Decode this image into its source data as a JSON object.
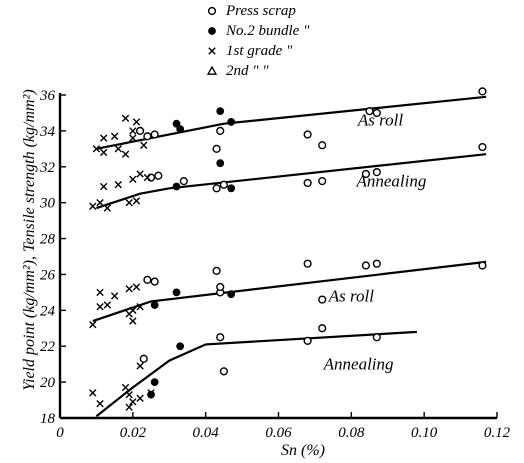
{
  "chart_data": {
    "type": "scatter",
    "title": "",
    "xlabel": "Sn (%)",
    "ylabel": "Yield point (kg/mm²), Tensile strength (kg/mm²)",
    "xlim": [
      0,
      0.12
    ],
    "ylim": [
      18,
      36
    ],
    "x_ticks": [
      0,
      0.02,
      0.04,
      0.06,
      0.08,
      0.1,
      0.12
    ],
    "x_tick_labels": [
      "0",
      "0.02",
      "0.04",
      "0.06",
      "0.08",
      "0.10",
      "0.12"
    ],
    "y_ticks": [
      18,
      20,
      22,
      24,
      26,
      28,
      30,
      32,
      34,
      36
    ],
    "y_tick_labels": [
      "18",
      "20",
      "22",
      "24",
      "26",
      "28",
      "30",
      "32",
      "34",
      "36"
    ],
    "grid": false,
    "legend": {
      "placement": "top-center",
      "entries": [
        {
          "marker": "circle-open",
          "label": "Press scrap"
        },
        {
          "marker": "circle-filled",
          "label": "No.2 bundle \""
        },
        {
          "marker": "cross",
          "label": "1st grade \""
        },
        {
          "marker": "triangle-open",
          "label": "2nd \" \""
        }
      ]
    },
    "annotations": [
      {
        "text": "As roll",
        "x": 0.088,
        "y": 34.3
      },
      {
        "text": "Annealing",
        "x": 0.091,
        "y": 30.9
      },
      {
        "text": "As roll",
        "x": 0.08,
        "y": 24.5
      },
      {
        "text": "Annealing",
        "x": 0.082,
        "y": 20.7
      }
    ],
    "trend_lines": [
      {
        "name": "tensile-as-roll",
        "points": [
          [
            0.01,
            33.0
          ],
          [
            0.025,
            33.6
          ],
          [
            0.045,
            34.4
          ],
          [
            0.117,
            35.9
          ]
        ]
      },
      {
        "name": "tensile-annealing",
        "points": [
          [
            0.01,
            29.7
          ],
          [
            0.022,
            30.5
          ],
          [
            0.03,
            30.8
          ],
          [
            0.117,
            32.7
          ]
        ]
      },
      {
        "name": "yield-as-roll",
        "points": [
          [
            0.009,
            23.4
          ],
          [
            0.025,
            24.5
          ],
          [
            0.117,
            26.7
          ]
        ]
      },
      {
        "name": "yield-annealing",
        "points": [
          [
            0.01,
            18.1
          ],
          [
            0.02,
            19.7
          ],
          [
            0.03,
            21.2
          ],
          [
            0.04,
            22.1
          ],
          [
            0.098,
            22.8
          ]
        ]
      }
    ],
    "series": [
      {
        "marker": "circle-open",
        "points": [
          [
            0.022,
            34.0
          ],
          [
            0.024,
            33.7
          ],
          [
            0.026,
            33.8
          ],
          [
            0.043,
            33.0
          ],
          [
            0.044,
            34.0
          ],
          [
            0.068,
            33.8
          ],
          [
            0.072,
            33.2
          ],
          [
            0.085,
            35.1
          ],
          [
            0.087,
            35.0
          ],
          [
            0.116,
            36.2
          ],
          [
            0.025,
            31.4
          ],
          [
            0.027,
            31.5
          ],
          [
            0.034,
            31.2
          ],
          [
            0.043,
            30.8
          ],
          [
            0.045,
            31.0
          ],
          [
            0.068,
            31.1
          ],
          [
            0.072,
            31.2
          ],
          [
            0.084,
            31.6
          ],
          [
            0.087,
            31.7
          ],
          [
            0.116,
            33.1
          ],
          [
            0.024,
            25.7
          ],
          [
            0.026,
            25.6
          ],
          [
            0.043,
            26.2
          ],
          [
            0.044,
            25.0
          ],
          [
            0.044,
            25.3
          ],
          [
            0.068,
            26.6
          ],
          [
            0.072,
            24.6
          ],
          [
            0.084,
            26.5
          ],
          [
            0.087,
            26.6
          ],
          [
            0.116,
            26.5
          ],
          [
            0.023,
            21.3
          ],
          [
            0.044,
            22.5
          ],
          [
            0.045,
            20.6
          ],
          [
            0.068,
            22.3
          ],
          [
            0.072,
            23.0
          ],
          [
            0.087,
            22.5
          ]
        ]
      },
      {
        "marker": "circle-filled",
        "points": [
          [
            0.032,
            34.4
          ],
          [
            0.033,
            34.1
          ],
          [
            0.044,
            35.1
          ],
          [
            0.044,
            32.2
          ],
          [
            0.047,
            34.5
          ],
          [
            0.032,
            30.9
          ],
          [
            0.047,
            30.8
          ],
          [
            0.026,
            24.3
          ],
          [
            0.032,
            25.0
          ],
          [
            0.047,
            24.9
          ],
          [
            0.033,
            22.0
          ],
          [
            0.026,
            20.0
          ],
          [
            0.025,
            19.3
          ]
        ]
      },
      {
        "marker": "cross",
        "points": [
          [
            0.01,
            33.0
          ],
          [
            0.012,
            32.8
          ],
          [
            0.012,
            33.6
          ],
          [
            0.015,
            33.7
          ],
          [
            0.016,
            33.0
          ],
          [
            0.018,
            32.7
          ],
          [
            0.02,
            33.6
          ],
          [
            0.02,
            34.0
          ],
          [
            0.021,
            34.5
          ],
          [
            0.023,
            33.2
          ],
          [
            0.018,
            34.7
          ],
          [
            0.009,
            29.8
          ],
          [
            0.011,
            30.0
          ],
          [
            0.012,
            30.9
          ],
          [
            0.013,
            29.7
          ],
          [
            0.016,
            31.0
          ],
          [
            0.019,
            30.0
          ],
          [
            0.02,
            31.3
          ],
          [
            0.021,
            30.1
          ],
          [
            0.022,
            31.6
          ],
          [
            0.024,
            31.4
          ],
          [
            0.009,
            23.2
          ],
          [
            0.011,
            24.2
          ],
          [
            0.011,
            25.0
          ],
          [
            0.013,
            24.3
          ],
          [
            0.015,
            24.8
          ],
          [
            0.019,
            25.2
          ],
          [
            0.019,
            23.8
          ],
          [
            0.02,
            24.0
          ],
          [
            0.02,
            23.4
          ],
          [
            0.021,
            25.3
          ],
          [
            0.022,
            24.2
          ],
          [
            0.009,
            19.4
          ],
          [
            0.011,
            18.8
          ],
          [
            0.018,
            19.7
          ],
          [
            0.019,
            18.6
          ],
          [
            0.019,
            19.3
          ],
          [
            0.02,
            18.9
          ],
          [
            0.022,
            19.1
          ],
          [
            0.022,
            20.9
          ],
          [
            0.025,
            19.4
          ]
        ]
      }
    ]
  }
}
